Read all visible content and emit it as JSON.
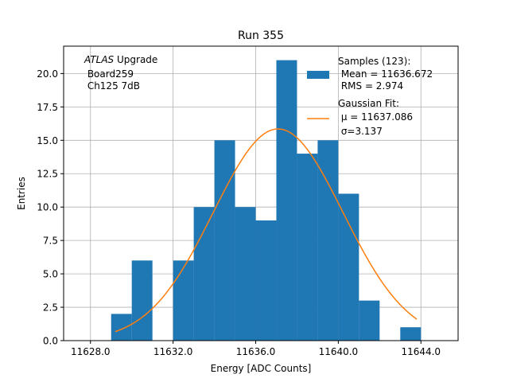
{
  "chart_data": {
    "type": "bar",
    "title": "Run 355",
    "xlabel": "Energy [ADC Counts]",
    "ylabel": "Entries",
    "xlim": [
      11626.7,
      11645.8
    ],
    "ylim": [
      0,
      22.05
    ],
    "xticks": [
      11628.0,
      11632.0,
      11636.0,
      11640.0,
      11644.0
    ],
    "xtick_labels": [
      "11628.0",
      "11632.0",
      "11636.0",
      "11640.0",
      "11644.0"
    ],
    "yticks": [
      0,
      2.5,
      5,
      7.5,
      10,
      12.5,
      15,
      17.5,
      20
    ],
    "ytick_labels": [
      "0.0",
      "2.5",
      "5.0",
      "7.5",
      "10.0",
      "12.5",
      "15.0",
      "17.5",
      "20.0"
    ],
    "grid": true,
    "bin_edges": [
      11629.0,
      11630.0,
      11631.0,
      11632.0,
      11633.0,
      11634.0,
      11635.0,
      11636.0,
      11637.0,
      11638.0,
      11639.0,
      11640.0,
      11641.0,
      11642.0,
      11643.0,
      11644.0
    ],
    "counts": [
      2,
      6,
      0,
      6,
      10,
      15,
      10,
      9,
      21,
      14,
      15,
      11,
      3,
      0,
      1
    ],
    "bar_color": "#1f77b4",
    "fit": {
      "name": "Gaussian Fit:",
      "mu": 11637.086,
      "sigma": 3.137,
      "amplitude": 15.85,
      "x_range": [
        11629.2,
        11643.8
      ],
      "color": "#ff7f0e"
    },
    "legend": {
      "placement": "upper right",
      "samples_lines": [
        "Samples (123):",
        " Mean = 11636.672",
        " RMS = 2.974"
      ],
      "fit_lines": [
        "Gaussian Fit:",
        " μ = 11637.086",
        " σ=3.137"
      ]
    },
    "annotation": {
      "placement": "upper left",
      "italic": "ATLAS",
      "rest": " Upgrade",
      "lines": [
        " Board259",
        " Ch125 7dB"
      ]
    }
  }
}
